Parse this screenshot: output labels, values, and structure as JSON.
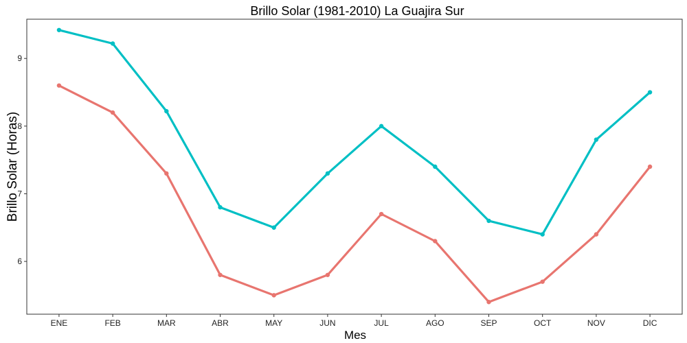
{
  "chart_data": {
    "type": "line",
    "title": "Brillo Solar (1981-2010)  La Guajira Sur",
    "xlabel": "Mes",
    "ylabel": "Brillo Solar (Horas)",
    "categories": [
      "ENE",
      "FEB",
      "MAR",
      "ABR",
      "MAY",
      "JUN",
      "JUL",
      "AGO",
      "SEP",
      "OCT",
      "NOV",
      "DIC"
    ],
    "yticks": [
      6,
      7,
      8,
      9
    ],
    "ylim": [
      5.22,
      9.58
    ],
    "grid": false,
    "legend": "none",
    "series": [
      {
        "color": "#00BFC4",
        "values": [
          9.42,
          9.22,
          8.22,
          6.8,
          6.5,
          7.3,
          8.0,
          7.4,
          6.6,
          6.4,
          7.8,
          8.5
        ]
      },
      {
        "color": "#E8756F",
        "values": [
          8.6,
          8.2,
          7.3,
          5.8,
          5.5,
          5.8,
          6.7,
          6.3,
          5.4,
          5.7,
          6.4,
          7.4
        ]
      }
    ]
  }
}
